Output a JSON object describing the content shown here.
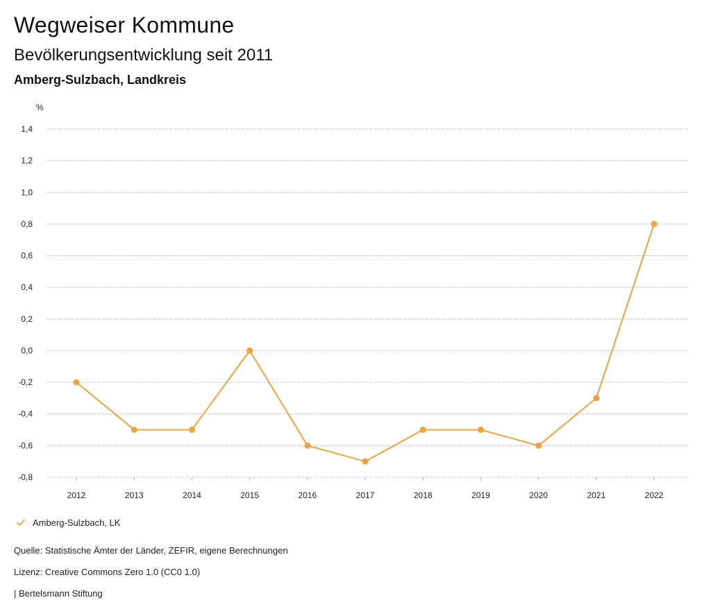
{
  "header": {
    "title": "Wegweiser Kommune",
    "subtitle": "Bevölkerungsentwicklung seit 2011",
    "region": "Amberg-Sulzbach, Landkreis"
  },
  "chart_data": {
    "type": "line",
    "ylabel": "%",
    "xlabel": "",
    "ylim": [
      -0.8,
      1.4
    ],
    "yticks": [
      "1,4",
      "1,2",
      "1,0",
      "0,8",
      "0,6",
      "0,4",
      "0,2",
      "0,0",
      "-0,2",
      "-0,4",
      "-0,6",
      "-0,8"
    ],
    "ytick_values": [
      1.4,
      1.2,
      1.0,
      0.8,
      0.6,
      0.4,
      0.2,
      0.0,
      -0.2,
      -0.4,
      -0.6,
      -0.8
    ],
    "categories": [
      "2012",
      "2013",
      "2014",
      "2015",
      "2016",
      "2017",
      "2018",
      "2019",
      "2020",
      "2021",
      "2022"
    ],
    "series": [
      {
        "name": "Amberg-Sulzbach, LK",
        "color": "#f0a23c",
        "values": [
          -0.2,
          -0.5,
          -0.5,
          0.0,
          -0.6,
          -0.7,
          -0.5,
          -0.5,
          -0.6,
          -0.3,
          0.8
        ]
      }
    ],
    "grid": true,
    "legend_position": "bottom-left"
  },
  "legend": {
    "label": "Amberg-Sulzbach, LK",
    "icon": "checkmark-icon",
    "color": "#f0a23c"
  },
  "footer": {
    "source": "Quelle: Statistische Ämter der Länder, ZEFIR, eigene Berechnungen",
    "license": "Lizenz: Creative Commons Zero 1.0 (CC0 1.0)",
    "publisher": "| Bertelsmann Stiftung"
  }
}
